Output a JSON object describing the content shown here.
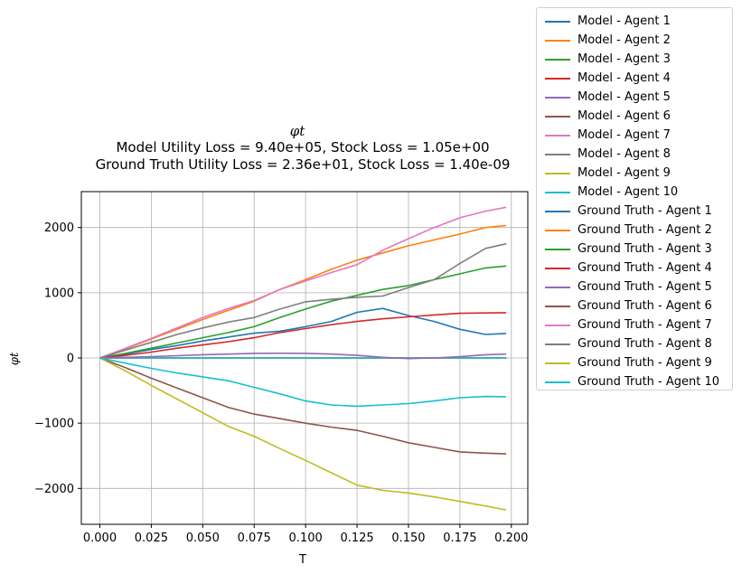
{
  "chart_data": {
    "type": "line",
    "title": "φt",
    "title_lines": [
      "Model Utility Loss = 9.40e+05, Stock Loss = 1.05e+00",
      "Ground Truth Utility Loss = 2.36e+01, Stock Loss = 1.40e-09"
    ],
    "xlabel": "T",
    "ylabel": "φt",
    "xlim": [
      -0.009,
      0.208
    ],
    "ylim": [
      -2550,
      2550
    ],
    "xticks": [
      0.0,
      0.025,
      0.05,
      0.075,
      0.1,
      0.125,
      0.15,
      0.175,
      0.2
    ],
    "xtick_labels": [
      "0.000",
      "0.025",
      "0.050",
      "0.075",
      "0.100",
      "0.125",
      "0.150",
      "0.175",
      "0.200"
    ],
    "yticks": [
      -2000,
      -1000,
      0,
      1000,
      2000
    ],
    "ytick_labels": [
      "−2000",
      "−1000",
      "0",
      "1000",
      "2000"
    ],
    "grid": true,
    "legend_position": "outside-right",
    "colors": [
      "#1f77b4",
      "#ff7f0e",
      "#2ca02c",
      "#d62728",
      "#9467bd",
      "#8c564b",
      "#e377c2",
      "#7f7f7f",
      "#bcbd22",
      "#17becf"
    ],
    "x": [
      0.0,
      0.0125,
      0.025,
      0.0375,
      0.05,
      0.0625,
      0.075,
      0.0875,
      0.1,
      0.1125,
      0.125,
      0.1375,
      0.15,
      0.1625,
      0.175,
      0.1875,
      0.1975
    ],
    "series": [
      {
        "name": "Model - Agent 1",
        "color": "#1f77b4",
        "values": [
          0,
          0,
          0,
          0,
          0,
          0,
          0,
          0,
          0,
          0,
          0,
          0,
          0,
          0,
          0,
          0,
          0
        ]
      },
      {
        "name": "Model - Agent 2",
        "color": "#ff7f0e",
        "values": [
          0,
          0,
          0,
          0,
          0,
          0,
          0,
          0,
          0,
          0,
          0,
          0,
          0,
          0,
          0,
          0,
          0
        ]
      },
      {
        "name": "Model - Agent 3",
        "color": "#2ca02c",
        "values": [
          0,
          0,
          0,
          0,
          0,
          0,
          0,
          0,
          0,
          0,
          0,
          0,
          0,
          0,
          0,
          0,
          0
        ]
      },
      {
        "name": "Model - Agent 4",
        "color": "#d62728",
        "values": [
          0,
          0,
          0,
          0,
          0,
          0,
          0,
          0,
          0,
          0,
          0,
          0,
          0,
          0,
          0,
          0,
          0
        ]
      },
      {
        "name": "Model - Agent 5",
        "color": "#9467bd",
        "values": [
          0,
          0,
          0,
          0,
          0,
          0,
          0,
          0,
          0,
          0,
          0,
          0,
          0,
          0,
          0,
          0,
          0
        ]
      },
      {
        "name": "Model - Agent 6",
        "color": "#8c564b",
        "values": [
          0,
          0,
          0,
          0,
          0,
          0,
          0,
          0,
          0,
          0,
          0,
          0,
          0,
          0,
          0,
          0,
          0
        ]
      },
      {
        "name": "Model - Agent 7",
        "color": "#e377c2",
        "values": [
          0,
          0,
          0,
          0,
          0,
          0,
          0,
          0,
          0,
          0,
          0,
          0,
          0,
          0,
          0,
          0,
          0
        ]
      },
      {
        "name": "Model - Agent 8",
        "color": "#7f7f7f",
        "values": [
          0,
          0,
          0,
          0,
          0,
          0,
          0,
          0,
          0,
          0,
          0,
          0,
          0,
          0,
          0,
          0,
          0
        ]
      },
      {
        "name": "Model - Agent 9",
        "color": "#bcbd22",
        "values": [
          0,
          0,
          0,
          0,
          0,
          0,
          0,
          0,
          0,
          0,
          0,
          0,
          0,
          0,
          0,
          0,
          0
        ]
      },
      {
        "name": "Model - Agent 10",
        "color": "#17becf",
        "values": [
          0,
          0,
          0,
          0,
          0,
          0,
          0,
          0,
          0,
          0,
          0,
          0,
          0,
          0,
          0,
          0,
          0
        ]
      },
      {
        "name": "Ground Truth - Agent 1",
        "color": "#1f77b4",
        "values": [
          0,
          60,
          130,
          190,
          260,
          320,
          380,
          410,
          480,
          560,
          700,
          760,
          650,
          560,
          440,
          360,
          375
        ]
      },
      {
        "name": "Ground Truth - Agent 2",
        "color": "#ff7f0e",
        "values": [
          0,
          140,
          290,
          440,
          590,
          730,
          870,
          1050,
          1200,
          1360,
          1500,
          1610,
          1720,
          1810,
          1900,
          2000,
          2030
        ]
      },
      {
        "name": "Ground Truth - Agent 3",
        "color": "#2ca02c",
        "values": [
          0,
          70,
          150,
          230,
          310,
          390,
          480,
          620,
          750,
          870,
          960,
          1050,
          1110,
          1200,
          1290,
          1380,
          1410
        ]
      },
      {
        "name": "Ground Truth - Agent 4",
        "color": "#d62728",
        "values": [
          0,
          40,
          90,
          150,
          200,
          250,
          310,
          390,
          450,
          510,
          560,
          600,
          630,
          660,
          685,
          690,
          695
        ]
      },
      {
        "name": "Ground Truth - Agent 5",
        "color": "#9467bd",
        "values": [
          0,
          10,
          20,
          35,
          50,
          60,
          70,
          72,
          70,
          60,
          40,
          10,
          -10,
          0,
          20,
          50,
          60
        ]
      },
      {
        "name": "Ground Truth - Agent 6",
        "color": "#8c564b",
        "values": [
          0,
          -150,
          -310,
          -460,
          -610,
          -760,
          -860,
          -930,
          -1000,
          -1060,
          -1110,
          -1200,
          -1300,
          -1370,
          -1440,
          -1460,
          -1470
        ]
      },
      {
        "name": "Ground Truth - Agent 7",
        "color": "#e377c2",
        "values": [
          0,
          150,
          300,
          460,
          620,
          760,
          880,
          1050,
          1180,
          1310,
          1430,
          1650,
          1830,
          2000,
          2150,
          2250,
          2310
        ]
      },
      {
        "name": "Ground Truth - Agent 8",
        "color": "#7f7f7f",
        "values": [
          0,
          120,
          240,
          360,
          460,
          550,
          620,
          750,
          860,
          900,
          930,
          950,
          1080,
          1200,
          1450,
          1680,
          1750
        ]
      },
      {
        "name": "Ground Truth - Agent 9",
        "color": "#bcbd22",
        "values": [
          0,
          -200,
          -420,
          -630,
          -840,
          -1050,
          -1200,
          -1390,
          -1570,
          -1760,
          -1950,
          -2030,
          -2070,
          -2130,
          -2200,
          -2270,
          -2330
        ]
      },
      {
        "name": "Ground Truth - Agent 10",
        "color": "#17becf",
        "values": [
          0,
          -80,
          -160,
          -230,
          -290,
          -350,
          -450,
          -550,
          -660,
          -720,
          -740,
          -720,
          -700,
          -660,
          -610,
          -590,
          -595
        ]
      }
    ]
  }
}
